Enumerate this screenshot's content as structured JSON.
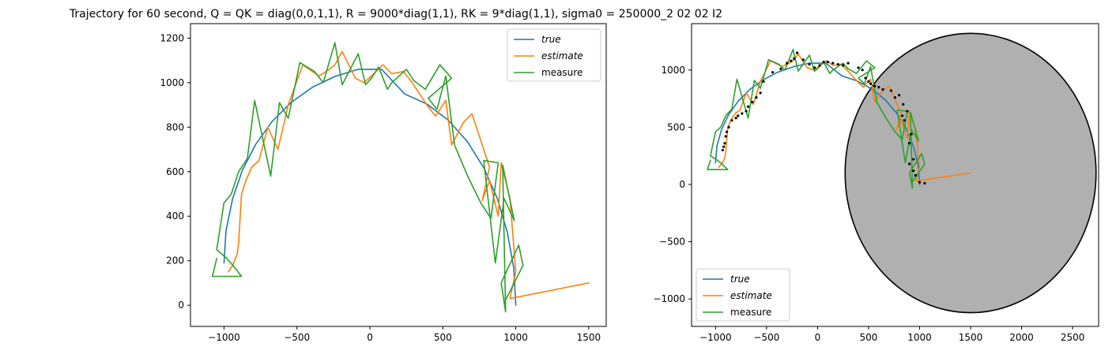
{
  "title": "Trajectory for 60 second, Q = QK = diag(0,0,1,1), R = 9000*diag(1,1), RK = 9*diag(1,1), sigma0 = 250000_2 02 02 I2",
  "colors": {
    "true": "#1f77b4",
    "estimate": "#ff7f0e",
    "measure": "#2ca02c",
    "ellipse_fill": "#b0b0b0",
    "dots": "#000000"
  },
  "chart_data": [
    {
      "type": "line",
      "title": "",
      "xlabel": "",
      "ylabel": "",
      "xlim": [
        -1230,
        1620
      ],
      "ylim": [
        -95,
        1265
      ],
      "xticks": [
        -1000,
        -500,
        0,
        500,
        1000,
        1500
      ],
      "yticks": [
        0,
        200,
        400,
        600,
        800,
        1000,
        1200
      ],
      "grid": false,
      "legend": "top-right",
      "series": [
        {
          "name": "true",
          "color": "#1f77b4",
          "x": [
            1000,
            986,
            942,
            874,
            782,
            669,
            538,
            393,
            239,
            80,
            -80,
            -239,
            -393,
            -538,
            -669,
            -782,
            -874,
            -942,
            -986,
            -1000
          ],
          "y": [
            0,
            167,
            328,
            479,
            616,
            734,
            831,
            903,
            949,
            1060,
            1060,
            1028,
            980,
            912,
            827,
            724,
            607,
            477,
            336,
            190
          ]
        },
        {
          "name": "estimate",
          "color": "#ff7f0e",
          "x": [
            1500,
            960,
            1000,
            960,
            900,
            880,
            820,
            770,
            820,
            700,
            640,
            560,
            520,
            450,
            390,
            290,
            230,
            150,
            90,
            10,
            -40,
            -100,
            -190,
            -240,
            -300,
            -350,
            -460,
            -560,
            -630,
            -700,
            -760,
            -810,
            -850,
            -880,
            -900,
            -910,
            -940,
            -970
          ],
          "y": [
            100,
            30,
            150,
            480,
            640,
            400,
            560,
            470,
            620,
            860,
            820,
            720,
            920,
            850,
            900,
            1000,
            1050,
            1040,
            1080,
            1030,
            1000,
            1020,
            1140,
            1080,
            1050,
            1030,
            1080,
            900,
            700,
            800,
            650,
            620,
            560,
            500,
            280,
            230,
            180,
            150
          ]
        },
        {
          "name": "measure",
          "color": "#2ca02c",
          "x": [
            920,
            1050,
            1020,
            900,
            930,
            910,
            990,
            920,
            860,
            780,
            880,
            830,
            760,
            670,
            580,
            520,
            460,
            400,
            560,
            480,
            380,
            300,
            250,
            150,
            120,
            60,
            10,
            -30,
            -80,
            -190,
            -240,
            -320,
            -380,
            -480,
            -560,
            -620,
            -680,
            -790,
            -840,
            -900,
            -950,
            -1000,
            -1050,
            -980,
            -940,
            -880,
            -1080,
            -1050
          ],
          "y": [
            10,
            180,
            270,
            100,
            -30,
            630,
            380,
            480,
            190,
            650,
            640,
            390,
            460,
            580,
            720,
            1030,
            880,
            930,
            1020,
            1080,
            970,
            1010,
            1060,
            1000,
            970,
            1070,
            1020,
            990,
            1130,
            990,
            1180,
            1000,
            1050,
            1090,
            840,
            910,
            580,
            920,
            660,
            600,
            500,
            460,
            250,
            210,
            180,
            130,
            130,
            210
          ]
        }
      ]
    },
    {
      "type": "line",
      "title": "",
      "xlabel": "",
      "ylabel": "",
      "xlim": [
        -1235,
        2755
      ],
      "ylim": [
        -1240,
        1405
      ],
      "xticks": [
        -1000,
        -500,
        0,
        500,
        1000,
        1500,
        2000,
        2500
      ],
      "yticks": [
        -1000,
        -500,
        0,
        500,
        1000
      ],
      "grid": false,
      "legend": "bottom-left",
      "ellipse": {
        "center": [
          1500,
          100
        ],
        "radius_x": 1230,
        "radius_y": 1220,
        "fill": "#b0b0b0",
        "edge": "#000000"
      },
      "series": [
        {
          "name": "true",
          "color": "#1f77b4",
          "x": [
            1000,
            986,
            942,
            874,
            782,
            669,
            538,
            393,
            239,
            80,
            -80,
            -239,
            -393,
            -538,
            -669,
            -782,
            -874,
            -942,
            -986,
            -1000
          ],
          "y": [
            0,
            167,
            328,
            479,
            616,
            734,
            831,
            903,
            949,
            1060,
            1060,
            1028,
            980,
            912,
            827,
            724,
            607,
            477,
            336,
            190
          ]
        },
        {
          "name": "estimate",
          "color": "#ff7f0e",
          "x": [
            1500,
            960,
            1000,
            960,
            900,
            880,
            820,
            770,
            820,
            700,
            640,
            560,
            520,
            450,
            390,
            290,
            230,
            150,
            90,
            10,
            -40,
            -100,
            -190,
            -240,
            -300,
            -350,
            -460,
            -560,
            -630,
            -700,
            -760,
            -810,
            -850,
            -880,
            -900,
            -910,
            -940,
            -970
          ],
          "y": [
            100,
            30,
            150,
            480,
            640,
            400,
            560,
            470,
            620,
            860,
            820,
            720,
            920,
            850,
            900,
            1000,
            1050,
            1040,
            1080,
            1030,
            1000,
            1020,
            1140,
            1080,
            1050,
            1030,
            1080,
            900,
            700,
            800,
            650,
            620,
            560,
            500,
            280,
            230,
            180,
            150
          ]
        },
        {
          "name": "measure",
          "color": "#2ca02c",
          "x": [
            920,
            1050,
            1020,
            900,
            930,
            910,
            990,
            920,
            860,
            780,
            880,
            830,
            760,
            670,
            580,
            520,
            460,
            400,
            560,
            480,
            380,
            300,
            250,
            150,
            120,
            60,
            10,
            -30,
            -80,
            -190,
            -240,
            -320,
            -380,
            -480,
            -560,
            -620,
            -680,
            -790,
            -840,
            -900,
            -950,
            -1000,
            -1050,
            -980,
            -940,
            -880,
            -1080,
            -1050
          ],
          "y": [
            10,
            180,
            270,
            100,
            -30,
            630,
            380,
            480,
            190,
            650,
            640,
            390,
            460,
            580,
            720,
            1030,
            880,
            930,
            1020,
            1080,
            970,
            1010,
            1060,
            1000,
            970,
            1070,
            1020,
            990,
            1130,
            990,
            1180,
            1000,
            1050,
            1090,
            840,
            910,
            580,
            920,
            660,
            600,
            500,
            460,
            250,
            210,
            180,
            130,
            130,
            210
          ]
        }
      ],
      "points": {
        "x": [
          1050,
          1000,
          960,
          940,
          900,
          900,
          920,
          940,
          880,
          850,
          830,
          840,
          800,
          760,
          720,
          640,
          600,
          560,
          520,
          500,
          470,
          440,
          400,
          300,
          250,
          200,
          150,
          100,
          60,
          20,
          -30,
          -80,
          -140,
          -200,
          -230,
          -260,
          -300,
          -360,
          -440,
          -530,
          -560,
          -600,
          -640,
          -680,
          -700,
          -740,
          -780,
          -800,
          -840,
          -870,
          -890,
          -900,
          -910,
          -920,
          -930
        ],
        "y": [
          10,
          20,
          80,
          120,
          180,
          360,
          440,
          220,
          640,
          560,
          600,
          700,
          780,
          760,
          820,
          830,
          850,
          860,
          880,
          900,
          930,
          1000,
          1020,
          1060,
          1040,
          1050,
          1060,
          1070,
          1070,
          1040,
          1020,
          1050,
          1090,
          1150,
          1100,
          1080,
          1060,
          1010,
          980,
          900,
          800,
          760,
          720,
          680,
          640,
          620,
          600,
          580,
          560,
          500,
          460,
          420,
          360,
          330,
          300
        ]
      }
    }
  ],
  "legend_labels": [
    "true",
    "estimate",
    "measure"
  ]
}
